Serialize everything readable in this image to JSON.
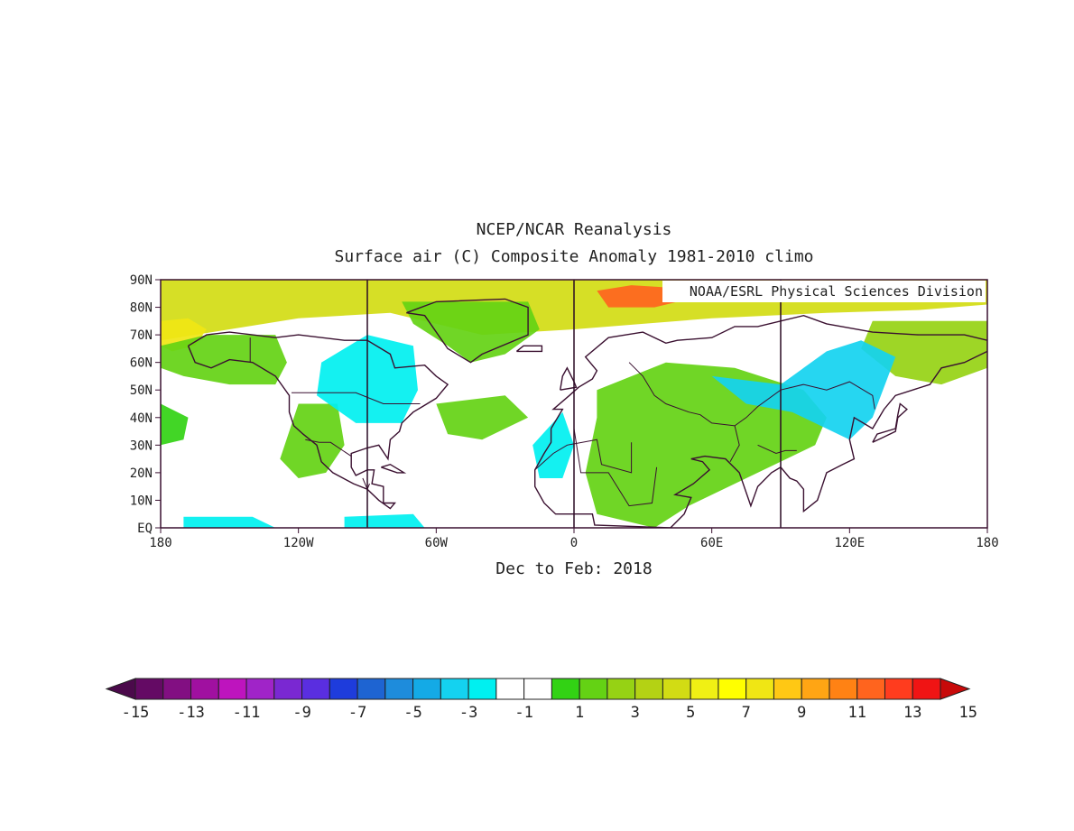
{
  "title": "NCEP/NCAR Reanalysis",
  "subtitle": "Surface air (C) Composite Anomaly 1981-2010 climo",
  "credit": "NOAA/ESRL Physical Sciences Division",
  "period_label": "Dec to Feb: 2018",
  "map": {
    "lon_range": [
      -180,
      180
    ],
    "lat_range": [
      0,
      90
    ],
    "lon_ticks": [
      {
        "value": -180,
        "label": "180"
      },
      {
        "value": -120,
        "label": "120W"
      },
      {
        "value": -60,
        "label": "60W"
      },
      {
        "value": 0,
        "label": "0"
      },
      {
        "value": 60,
        "label": "60E"
      },
      {
        "value": 120,
        "label": "120E"
      },
      {
        "value": 180,
        "label": "180"
      }
    ],
    "lat_ticks": [
      {
        "value": 90,
        "label": "90N"
      },
      {
        "value": 80,
        "label": "80N"
      },
      {
        "value": 70,
        "label": "70N"
      },
      {
        "value": 60,
        "label": "60N"
      },
      {
        "value": 50,
        "label": "50N"
      },
      {
        "value": 40,
        "label": "40N"
      },
      {
        "value": 30,
        "label": "30N"
      },
      {
        "value": 20,
        "label": "20N"
      },
      {
        "value": 10,
        "label": "10N"
      },
      {
        "value": 0,
        "label": "EQ"
      }
    ],
    "meridian_lines": [
      -90,
      0,
      90
    ],
    "anomaly_regions": [
      {
        "name": "arctic-warm-band",
        "value": 5,
        "points": [
          [
            -180,
            90
          ],
          [
            180,
            90
          ],
          [
            180,
            81
          ],
          [
            150,
            79
          ],
          [
            110,
            78
          ],
          [
            60,
            76
          ],
          [
            30,
            74
          ],
          [
            0,
            72
          ],
          [
            -40,
            70
          ],
          [
            -80,
            78
          ],
          [
            -120,
            76
          ],
          [
            -150,
            72
          ],
          [
            -180,
            68
          ]
        ]
      },
      {
        "name": "chukchi-warm",
        "value": 8,
        "points": [
          [
            -180,
            75
          ],
          [
            -168,
            76
          ],
          [
            -160,
            72
          ],
          [
            -165,
            66
          ],
          [
            -175,
            64
          ],
          [
            -180,
            66
          ]
        ]
      },
      {
        "name": "barents-warm",
        "value": 12,
        "points": [
          [
            10,
            86
          ],
          [
            25,
            88
          ],
          [
            45,
            87
          ],
          [
            50,
            83
          ],
          [
            35,
            80
          ],
          [
            15,
            80
          ]
        ]
      },
      {
        "name": "north-pacific-warm",
        "value": 2,
        "points": [
          [
            -180,
            66
          ],
          [
            -160,
            70
          ],
          [
            -130,
            70
          ],
          [
            -125,
            60
          ],
          [
            -130,
            52
          ],
          [
            -150,
            52
          ],
          [
            -170,
            55
          ],
          [
            -180,
            58
          ]
        ]
      },
      {
        "name": "greenland-warm",
        "value": 2,
        "points": [
          [
            -75,
            82
          ],
          [
            -20,
            82
          ],
          [
            -15,
            72
          ],
          [
            -30,
            63
          ],
          [
            -45,
            60
          ],
          [
            -55,
            66
          ],
          [
            -70,
            74
          ]
        ]
      },
      {
        "name": "north-atlantic-warm",
        "value": 2,
        "points": [
          [
            -60,
            45
          ],
          [
            -30,
            48
          ],
          [
            -20,
            40
          ],
          [
            -40,
            32
          ],
          [
            -55,
            34
          ]
        ]
      },
      {
        "name": "europe-asia-warm",
        "value": 2,
        "points": [
          [
            10,
            50
          ],
          [
            40,
            60
          ],
          [
            70,
            58
          ],
          [
            100,
            50
          ],
          [
            110,
            40
          ],
          [
            105,
            30
          ],
          [
            80,
            20
          ],
          [
            50,
            8
          ],
          [
            35,
            0
          ],
          [
            10,
            5
          ],
          [
            5,
            20
          ],
          [
            10,
            40
          ]
        ]
      },
      {
        "name": "east-asia-north-warm",
        "value": 3,
        "points": [
          [
            130,
            75
          ],
          [
            180,
            75
          ],
          [
            180,
            58
          ],
          [
            160,
            52
          ],
          [
            140,
            55
          ],
          [
            125,
            65
          ]
        ]
      },
      {
        "name": "southwest-usa-warm",
        "value": 2,
        "points": [
          [
            -120,
            45
          ],
          [
            -103,
            45
          ],
          [
            -100,
            30
          ],
          [
            -108,
            20
          ],
          [
            -120,
            18
          ],
          [
            -128,
            25
          ]
        ]
      },
      {
        "name": "central-pacific-warm",
        "value": 1,
        "points": [
          [
            -180,
            45
          ],
          [
            -168,
            40
          ],
          [
            -170,
            32
          ],
          [
            -180,
            30
          ]
        ]
      },
      {
        "name": "canada-cold",
        "value": -2,
        "points": [
          [
            -110,
            60
          ],
          [
            -90,
            70
          ],
          [
            -70,
            66
          ],
          [
            -68,
            50
          ],
          [
            -75,
            38
          ],
          [
            -95,
            38
          ],
          [
            -112,
            48
          ]
        ]
      },
      {
        "name": "siberia-cold",
        "value": -3,
        "points": [
          [
            60,
            55
          ],
          [
            90,
            52
          ],
          [
            110,
            64
          ],
          [
            125,
            68
          ],
          [
            140,
            62
          ],
          [
            130,
            40
          ],
          [
            120,
            32
          ],
          [
            95,
            42
          ],
          [
            75,
            45
          ]
        ]
      },
      {
        "name": "west-africa-cold",
        "value": -2,
        "points": [
          [
            -18,
            30
          ],
          [
            -5,
            42
          ],
          [
            0,
            30
          ],
          [
            -5,
            18
          ],
          [
            -15,
            18
          ]
        ]
      },
      {
        "name": "equatorial-pacific-cold",
        "value": -2,
        "points": [
          [
            -170,
            4
          ],
          [
            -140,
            4
          ],
          [
            -130,
            0
          ],
          [
            -170,
            0
          ]
        ]
      },
      {
        "name": "equatorial-atlantic-cold",
        "value": -2,
        "points": [
          [
            -100,
            4
          ],
          [
            -70,
            5
          ],
          [
            -65,
            0
          ],
          [
            -100,
            0
          ]
        ]
      }
    ],
    "coastlines": [
      [
        [
          -168,
          66
        ],
        [
          -160,
          70
        ],
        [
          -150,
          71
        ],
        [
          -140,
          70
        ],
        [
          -130,
          69
        ],
        [
          -120,
          70
        ],
        [
          -100,
          68
        ],
        [
          -90,
          68
        ],
        [
          -80,
          63
        ],
        [
          -78,
          58
        ],
        [
          -65,
          59
        ],
        [
          -60,
          55
        ],
        [
          -55,
          52
        ],
        [
          -60,
          47
        ],
        [
          -66,
          44
        ],
        [
          -70,
          42
        ],
        [
          -75,
          38
        ],
        [
          -76,
          35
        ],
        [
          -80,
          32
        ],
        [
          -81,
          25
        ],
        [
          -85,
          30
        ],
        [
          -90,
          29
        ],
        [
          -97,
          27
        ],
        [
          -97,
          22
        ],
        [
          -95,
          19
        ],
        [
          -90,
          21
        ],
        [
          -87,
          21
        ],
        [
          -88,
          16
        ],
        [
          -83,
          15
        ],
        [
          -83,
          9
        ],
        [
          -78,
          9
        ],
        [
          -80,
          7
        ],
        [
          -85,
          10
        ],
        [
          -90,
          14
        ],
        [
          -96,
          16
        ],
        [
          -105,
          20
        ],
        [
          -110,
          24
        ],
        [
          -112,
          30
        ],
        [
          -118,
          34
        ],
        [
          -122,
          37
        ],
        [
          -124,
          42
        ],
        [
          -124,
          48
        ],
        [
          -130,
          55
        ],
        [
          -140,
          60
        ],
        [
          -150,
          61
        ],
        [
          -158,
          58
        ],
        [
          -165,
          60
        ],
        [
          -168,
          66
        ]
      ],
      [
        [
          -73,
          78
        ],
        [
          -60,
          82
        ],
        [
          -30,
          83
        ],
        [
          -20,
          80
        ],
        [
          -20,
          70
        ],
        [
          -40,
          63
        ],
        [
          -45,
          60
        ],
        [
          -55,
          65
        ],
        [
          -65,
          77
        ],
        [
          -73,
          78
        ]
      ],
      [
        [
          -10,
          36
        ],
        [
          -5,
          43
        ],
        [
          -9,
          43
        ],
        [
          -2,
          48
        ],
        [
          2,
          51
        ],
        [
          8,
          54
        ],
        [
          10,
          57
        ],
        [
          5,
          62
        ],
        [
          15,
          69
        ],
        [
          30,
          71
        ],
        [
          40,
          67
        ],
        [
          45,
          68
        ],
        [
          60,
          69
        ],
        [
          70,
          73
        ],
        [
          80,
          73
        ],
        [
          100,
          77
        ],
        [
          110,
          74
        ],
        [
          130,
          71
        ],
        [
          150,
          70
        ],
        [
          170,
          70
        ],
        [
          180,
          68
        ],
        [
          180,
          64
        ],
        [
          170,
          60
        ],
        [
          160,
          58
        ],
        [
          155,
          52
        ],
        [
          140,
          48
        ],
        [
          135,
          43
        ],
        [
          130,
          36
        ],
        [
          122,
          40
        ],
        [
          120,
          32
        ],
        [
          122,
          25
        ],
        [
          117,
          23
        ],
        [
          110,
          20
        ],
        [
          108,
          15
        ],
        [
          106,
          10
        ],
        [
          100,
          6
        ],
        [
          100,
          14
        ],
        [
          97,
          17
        ],
        [
          94,
          18
        ],
        [
          90,
          22
        ],
        [
          86,
          20
        ],
        [
          80,
          15
        ],
        [
          77,
          8
        ],
        [
          72,
          20
        ],
        [
          66,
          25
        ],
        [
          57,
          26
        ],
        [
          51,
          25
        ],
        [
          56,
          24
        ],
        [
          59,
          21
        ],
        [
          52,
          16
        ],
        [
          44,
          12
        ],
        [
          51,
          11
        ],
        [
          48,
          5
        ],
        [
          42,
          0
        ],
        [
          9,
          1
        ],
        [
          8,
          5
        ],
        [
          -8,
          5
        ],
        [
          -13,
          9
        ],
        [
          -17,
          15
        ],
        [
          -17,
          21
        ],
        [
          -13,
          27
        ],
        [
          -10,
          31
        ],
        [
          -10,
          36
        ]
      ],
      [
        [
          -25,
          64
        ],
        [
          -22,
          66
        ],
        [
          -14,
          66
        ],
        [
          -14,
          64
        ],
        [
          -25,
          64
        ]
      ],
      [
        [
          -6,
          50
        ],
        [
          -5,
          55
        ],
        [
          -3,
          58
        ],
        [
          0,
          53
        ],
        [
          1,
          51
        ],
        [
          -6,
          50
        ]
      ],
      [
        [
          130,
          31
        ],
        [
          132,
          34
        ],
        [
          140,
          36
        ],
        [
          141,
          41
        ],
        [
          142,
          45
        ],
        [
          145,
          43
        ],
        [
          141,
          40
        ],
        [
          140,
          35
        ],
        [
          135,
          33
        ],
        [
          130,
          31
        ]
      ],
      [
        [
          -84,
          22
        ],
        [
          -77,
          20
        ],
        [
          -74,
          20
        ],
        [
          -80,
          23
        ],
        [
          -84,
          22
        ]
      ]
    ],
    "borders": [
      [
        [
          -141,
          69
        ],
        [
          -141,
          60
        ]
      ],
      [
        [
          -123,
          49
        ],
        [
          -95,
          49
        ],
        [
          -83,
          45
        ],
        [
          -75,
          45
        ],
        [
          -67,
          45
        ]
      ],
      [
        [
          -117,
          32
        ],
        [
          -111,
          31
        ],
        [
          -106,
          31
        ],
        [
          -97,
          26
        ]
      ],
      [
        [
          -17,
          21
        ],
        [
          -9,
          27
        ],
        [
          -3,
          30
        ],
        [
          10,
          32
        ],
        [
          12,
          23
        ],
        [
          25,
          20
        ],
        [
          25,
          31
        ]
      ],
      [
        [
          0,
          36
        ],
        [
          3,
          20
        ],
        [
          15,
          20
        ],
        [
          24,
          8
        ],
        [
          34,
          9
        ],
        [
          36,
          22
        ]
      ],
      [
        [
          24,
          60
        ],
        [
          30,
          55
        ],
        [
          35,
          48
        ],
        [
          40,
          45
        ],
        [
          50,
          42
        ],
        [
          55,
          41
        ],
        [
          60,
          38
        ],
        [
          70,
          37
        ],
        [
          75,
          40
        ],
        [
          80,
          44
        ],
        [
          90,
          50
        ],
        [
          100,
          52
        ],
        [
          110,
          50
        ],
        [
          120,
          53
        ],
        [
          130,
          48
        ],
        [
          131,
          43
        ]
      ],
      [
        [
          70,
          37
        ],
        [
          72,
          30
        ],
        [
          68,
          24
        ]
      ],
      [
        [
          80,
          30
        ],
        [
          88,
          27
        ],
        [
          92,
          28
        ],
        [
          97,
          28
        ]
      ],
      [
        [
          -92,
          18
        ],
        [
          -90,
          14
        ],
        [
          -89,
          16
        ]
      ]
    ]
  },
  "colorbar": {
    "labels": [
      "-15",
      "-13",
      "-11",
      "-9",
      "-7",
      "-5",
      "-3",
      "-1",
      "1",
      "3",
      "5",
      "7",
      "9",
      "11",
      "13",
      "15"
    ],
    "colors": [
      "#4b0a4b",
      "#640a64",
      "#820f82",
      "#a010a0",
      "#be14be",
      "#a024c8",
      "#7a28d2",
      "#5a2ee0",
      "#1e3cdc",
      "#1e64d2",
      "#1e8cdc",
      "#14aae6",
      "#14d2f0",
      "#00f0f0",
      "#ffffff",
      "#ffffff",
      "#32d214",
      "#64d214",
      "#96d214",
      "#b4d214",
      "#d2dc14",
      "#f0f014",
      "#ffff00",
      "#f0e614",
      "#ffc814",
      "#ffa514",
      "#ff8214",
      "#ff641e",
      "#ff3c1e",
      "#f01414",
      "#c80a0a"
    ]
  }
}
